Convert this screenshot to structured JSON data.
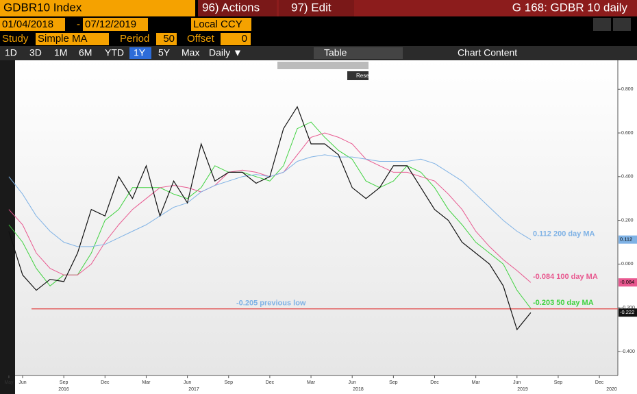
{
  "header": {
    "security": "GDBR10 Index",
    "actions": "96) Actions",
    "edit": "97) Edit",
    "page_title": "G 168: GDBR 10 daily"
  },
  "range_bar": {
    "start_date": "01/04/2018",
    "separator": "-",
    "end_date": "07/12/2019",
    "currency": "Local CCY"
  },
  "study_bar": {
    "study_label": "Study",
    "study": "Simple MA",
    "period_label": "Period",
    "period": "50",
    "offset_label": "Offset",
    "offset": "0"
  },
  "tabs": {
    "items": [
      "1D",
      "3D",
      "1M",
      "6M",
      "YTD",
      "1Y",
      "5Y",
      "Max",
      "Daily ▼"
    ],
    "active": "1Y",
    "table": "Table",
    "chart_content": "Chart Content",
    "reset": "Reset"
  },
  "chart_data": {
    "type": "line",
    "categories": [
      "May",
      "Jun",
      null,
      null,
      "Sep",
      null,
      null,
      "Dec",
      null,
      null,
      "Mar",
      null,
      null,
      "Jun",
      null,
      null,
      "Sep",
      null,
      null,
      "Dec",
      null,
      null,
      "Mar",
      null,
      null,
      "Jun",
      null,
      null,
      "Sep",
      null,
      null,
      "Dec",
      null,
      null,
      "Mar",
      null,
      null,
      "Jun",
      null,
      null,
      "Sep",
      null,
      null,
      "Dec",
      null
    ],
    "year_labels": [
      "2016",
      "2017",
      "2018",
      "2019",
      "2020"
    ],
    "ylim": [
      -0.51,
      0.92
    ],
    "yticks": [
      {
        "value": 0.8,
        "label": "0.800"
      },
      {
        "value": 0.6,
        "label": "0.600"
      },
      {
        "value": 0.4,
        "label": "0.400"
      },
      {
        "value": 0.2,
        "label": "0.200"
      },
      {
        "value": 0.0,
        "label": "0.000"
      },
      {
        "value": -0.2,
        "label": "-0.200"
      },
      {
        "value": -0.4,
        "label": "-0.400"
      }
    ],
    "series": [
      {
        "name": "GDBR10",
        "color": "#111111",
        "values": [
          0.15,
          -0.05,
          -0.12,
          -0.07,
          -0.08,
          0.05,
          0.25,
          0.22,
          0.4,
          0.3,
          0.45,
          0.22,
          0.38,
          0.28,
          0.55,
          0.38,
          0.42,
          0.42,
          0.37,
          0.4,
          0.62,
          0.72,
          0.55,
          0.55,
          0.5,
          0.35,
          0.3,
          0.35,
          0.45,
          0.45,
          0.35,
          0.25,
          0.2,
          0.1,
          0.05,
          0.0,
          -0.1,
          -0.3,
          -0.222,
          null,
          null,
          null,
          null,
          null,
          null
        ]
      },
      {
        "name": "200 day MA",
        "color": "#7fb2e5",
        "values": [
          0.4,
          0.32,
          0.22,
          0.15,
          0.1,
          0.08,
          0.08,
          0.09,
          0.12,
          0.15,
          0.18,
          0.22,
          0.26,
          0.28,
          0.33,
          0.36,
          0.38,
          0.4,
          0.41,
          0.4,
          0.42,
          0.47,
          0.49,
          0.5,
          0.49,
          0.49,
          0.48,
          0.47,
          0.47,
          0.47,
          0.48,
          0.46,
          0.42,
          0.38,
          0.32,
          0.26,
          0.2,
          0.15,
          0.112,
          null,
          null,
          null,
          null,
          null,
          null
        ]
      },
      {
        "name": "100 day MA",
        "color": "#e8588f",
        "values": [
          0.25,
          0.18,
          0.05,
          -0.02,
          -0.05,
          -0.05,
          0.0,
          0.1,
          0.18,
          0.25,
          0.3,
          0.35,
          0.36,
          0.35,
          0.33,
          0.36,
          0.42,
          0.43,
          0.42,
          0.4,
          0.42,
          0.5,
          0.58,
          0.6,
          0.58,
          0.55,
          0.48,
          0.45,
          0.42,
          0.42,
          0.4,
          0.38,
          0.32,
          0.25,
          0.15,
          0.08,
          0.02,
          -0.03,
          -0.084,
          null,
          null,
          null,
          null,
          null,
          null
        ]
      },
      {
        "name": "50 day MA",
        "color": "#3fd23f",
        "values": [
          0.18,
          0.1,
          -0.02,
          -0.1,
          -0.05,
          -0.05,
          0.05,
          0.2,
          0.25,
          0.35,
          0.35,
          0.35,
          0.32,
          0.3,
          0.35,
          0.45,
          0.42,
          0.42,
          0.4,
          0.38,
          0.45,
          0.62,
          0.65,
          0.58,
          0.52,
          0.48,
          0.38,
          0.35,
          0.38,
          0.45,
          0.42,
          0.35,
          0.25,
          0.18,
          0.1,
          0.05,
          0.0,
          -0.12,
          -0.203,
          null,
          null,
          null,
          null,
          null,
          null
        ]
      }
    ],
    "annotations": [
      {
        "text": "0.112 200 day MA",
        "value": 0.112,
        "color": "#7fb2e5"
      },
      {
        "text": "-0.084 100 day MA",
        "value": -0.084,
        "color": "#e8588f"
      },
      {
        "text": "-0.203 50 day MA",
        "value": -0.203,
        "color": "#3fd23f"
      }
    ],
    "badges": [
      {
        "value": 0.112,
        "label": "0.112",
        "color": "#7fb2e5"
      },
      {
        "value": -0.084,
        "label": "-0.084",
        "color": "#e8588f"
      },
      {
        "value": -0.222,
        "label": "-0.222",
        "color": "#111111"
      }
    ],
    "reference_line": {
      "value": -0.205,
      "label": "-0.205 previous low",
      "color": "#e04545",
      "label_color": "#7fb2e5"
    }
  }
}
